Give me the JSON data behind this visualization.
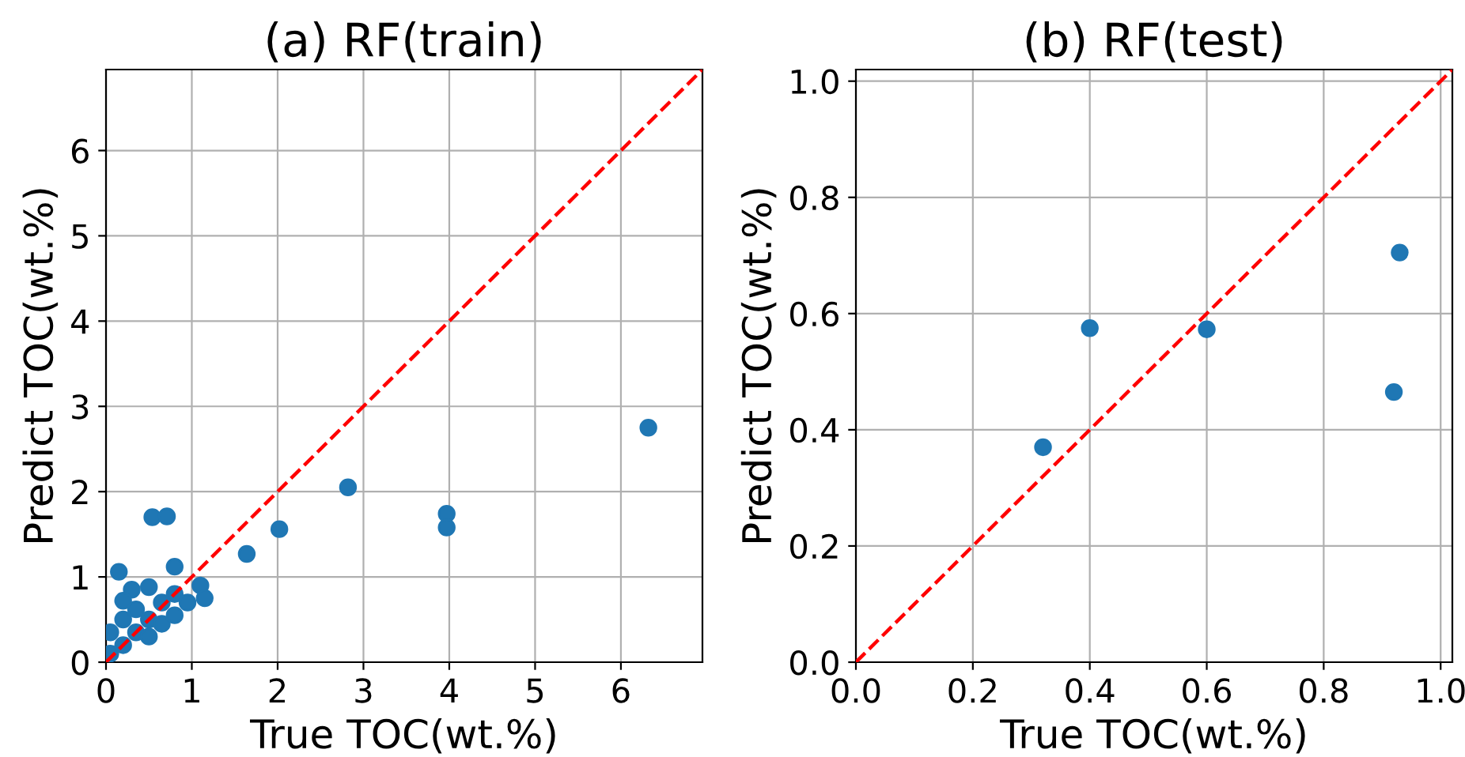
{
  "chart_data": [
    {
      "type": "scatter",
      "title": "(a) RF(train)",
      "xlabel": "True TOC(wt.%)",
      "ylabel": "Predict TOC(wt.%)",
      "xlim": [
        0,
        6.95
      ],
      "ylim": [
        0,
        6.95
      ],
      "xticks": [
        0,
        1,
        2,
        3,
        4,
        5,
        6
      ],
      "yticks": [
        0,
        1,
        2,
        3,
        4,
        5,
        6
      ],
      "grid": true,
      "marker": "circle",
      "series": [
        {
          "color": "#1f77b4",
          "x": [
            6.32,
            2.82,
            2.02,
            3.97,
            3.97,
            1.64,
            0.54,
            0.71,
            0.8,
            0.15,
            0.05,
            0.05,
            0.2,
            0.2,
            0.3,
            0.35,
            0.35,
            0.5,
            0.5,
            0.65,
            0.65,
            0.8,
            0.8,
            0.95,
            1.1,
            1.15,
            0.5,
            0.2
          ],
          "values": [
            2.75,
            2.05,
            1.56,
            1.74,
            1.58,
            1.27,
            1.7,
            1.71,
            1.12,
            1.06,
            0.1,
            0.35,
            0.2,
            0.5,
            0.85,
            0.35,
            0.62,
            0.5,
            0.88,
            0.7,
            0.45,
            0.55,
            0.8,
            0.7,
            0.9,
            0.75,
            0.3,
            0.72
          ]
        },
        {
          "type": "line",
          "color": "#ff0000",
          "line_style": "dashed",
          "marker": "none",
          "x": [
            0,
            6.95
          ],
          "values": [
            0,
            6.95
          ]
        }
      ]
    },
    {
      "type": "scatter",
      "title": "(b) RF(test)",
      "xlabel": "True TOC(wt.%)",
      "ylabel": "Predict TOC(wt.%)",
      "xlim": [
        0,
        1.02
      ],
      "ylim": [
        0,
        1.02
      ],
      "xticks": [
        {
          "value": 0,
          "label": "0.0"
        },
        0.2,
        0.4,
        0.6,
        0.8,
        {
          "value": 1,
          "label": "1.0"
        }
      ],
      "yticks": [
        {
          "value": 0,
          "label": "0.0"
        },
        0.2,
        0.4,
        0.6,
        0.8,
        {
          "value": 1,
          "label": "1.0"
        }
      ],
      "grid": true,
      "marker": "circle",
      "series": [
        {
          "color": "#1f77b4",
          "x": [
            0.32,
            0.4,
            0.6,
            0.92,
            0.93
          ],
          "values": [
            0.37,
            0.575,
            0.573,
            0.465,
            0.705
          ]
        },
        {
          "type": "line",
          "color": "#ff0000",
          "line_style": "dashed",
          "marker": "none",
          "x": [
            0,
            1.02
          ],
          "values": [
            0,
            1.02
          ]
        }
      ]
    }
  ]
}
